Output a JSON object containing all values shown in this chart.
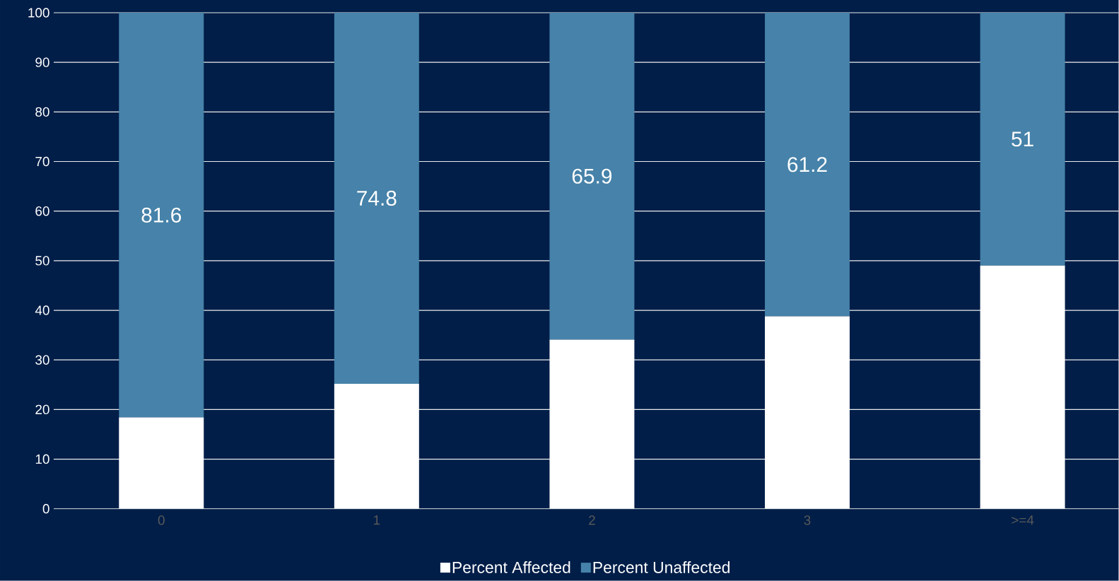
{
  "chart_data": {
    "type": "bar",
    "stacked": true,
    "categories": [
      "0",
      "1",
      "2",
      "3",
      ">=4"
    ],
    "series": [
      {
        "name": "Percent Affected",
        "color": "#ffffff",
        "values": [
          18.4,
          25.2,
          34.1,
          38.8,
          49
        ]
      },
      {
        "name": "Percent Unaffected",
        "color": "#4682a9",
        "values": [
          81.6,
          74.8,
          65.9,
          61.2,
          51
        ],
        "value_labels": [
          "81.6",
          "74.8",
          "65.9",
          "61.2",
          "51"
        ]
      }
    ],
    "ylim": [
      0,
      100
    ],
    "yticks": [
      0,
      10,
      20,
      30,
      40,
      50,
      60,
      70,
      80,
      90,
      100
    ],
    "grid": "y",
    "legend": "bottom"
  }
}
